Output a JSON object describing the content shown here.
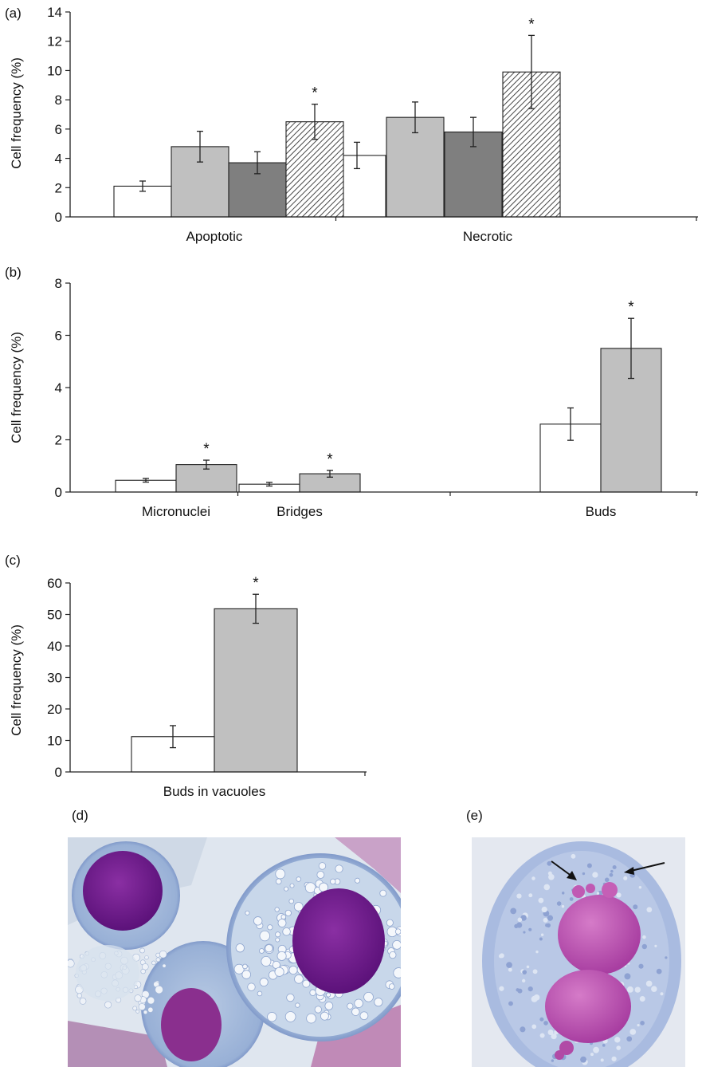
{
  "chart_data": [
    {
      "panel": "(a)",
      "type": "bar",
      "ylabel": "Cell frequency (%)",
      "ylim": [
        0,
        14
      ],
      "yticks": [
        0,
        2,
        4,
        6,
        8,
        10,
        12,
        14
      ],
      "categories": [
        "Apoptotic",
        "Necrotic"
      ],
      "series": [
        {
          "fill": "#ffffff",
          "values": [
            2.1,
            4.2
          ],
          "errors": [
            0.35,
            0.9
          ],
          "significant": [
            false,
            false
          ]
        },
        {
          "fill": "#c0c0c0",
          "values": [
            4.8,
            6.8
          ],
          "errors": [
            1.05,
            1.05
          ],
          "significant": [
            false,
            false
          ]
        },
        {
          "fill": "#7f7f7f",
          "values": [
            3.7,
            5.8
          ],
          "errors": [
            0.75,
            1.0
          ],
          "significant": [
            false,
            false
          ]
        },
        {
          "fill": "hatch",
          "values": [
            6.5,
            9.9
          ],
          "errors": [
            1.2,
            2.5
          ],
          "significant": [
            true,
            true
          ]
        }
      ],
      "significance_marker": "*"
    },
    {
      "panel": "(b)",
      "type": "bar",
      "ylabel": "Cell frequency (%)",
      "ylim": [
        0,
        8
      ],
      "yticks": [
        0,
        2,
        4,
        6,
        8
      ],
      "categories": [
        "Micronuclei",
        "Bridges",
        "Buds"
      ],
      "series": [
        {
          "fill": "#ffffff",
          "values": [
            0.45,
            0.3,
            2.6
          ],
          "errors": [
            0.07,
            0.07,
            0.62
          ],
          "significant": [
            false,
            false,
            false
          ]
        },
        {
          "fill": "#c0c0c0",
          "values": [
            1.05,
            0.7,
            5.5
          ],
          "errors": [
            0.17,
            0.13,
            1.15
          ],
          "significant": [
            true,
            true,
            true
          ]
        }
      ],
      "significance_marker": "*"
    },
    {
      "panel": "(c)",
      "type": "bar",
      "ylabel": "Cell frequency (%)",
      "ylim": [
        0,
        60
      ],
      "yticks": [
        0,
        10,
        20,
        30,
        40,
        50,
        60
      ],
      "categories": [
        "Buds in vacuoles"
      ],
      "series": [
        {
          "fill": "#ffffff",
          "values": [
            11.2
          ],
          "errors": [
            3.5
          ],
          "significant": [
            false
          ]
        },
        {
          "fill": "#c0c0c0",
          "values": [
            51.8
          ],
          "errors": [
            4.6
          ],
          "significant": [
            true
          ]
        }
      ],
      "significance_marker": "*"
    }
  ],
  "images": [
    {
      "label": "(d)",
      "depicts": "micrograph-cells-with-vacuoles"
    },
    {
      "label": "(e)",
      "depicts": "micrograph-binucleated-cell-with-buds"
    }
  ],
  "colors": {
    "cytoplasm": "#a9bfdd",
    "nucleus": "#6e1a8c",
    "background": "#dfe6ef",
    "stain_pink": "#c86bb0"
  }
}
